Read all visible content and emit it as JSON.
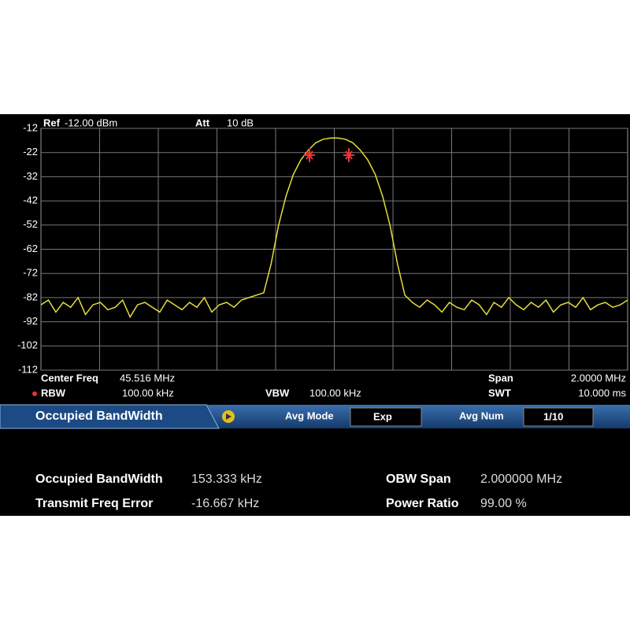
{
  "header": {
    "ref_label": "Ref",
    "ref_value": "-12.00 dBm",
    "att_label": "Att",
    "att_value": "10 dB"
  },
  "chart_data": {
    "type": "line",
    "ylim": [
      -112,
      -12
    ],
    "yticks": [
      -12,
      -22,
      -32,
      -42,
      -52,
      -62,
      -72,
      -82,
      -92,
      -102,
      -112
    ],
    "grid": true,
    "series": [
      {
        "color": "#e6dc3c",
        "values": [
          -85,
          -83,
          -88,
          -84,
          -86,
          -82,
          -89,
          -85,
          -84,
          -87,
          -86,
          -83,
          -90,
          -85,
          -84,
          -86,
          -88,
          -83,
          -85,
          -87,
          -84,
          -86,
          -82,
          -88,
          -85,
          -84,
          -86,
          -83,
          -82,
          -81,
          -80,
          -68,
          -52,
          -40,
          -31,
          -25,
          -21,
          -18,
          -16.5,
          -16,
          -16,
          -16.5,
          -18,
          -21,
          -25,
          -31,
          -40,
          -52,
          -68,
          -81,
          -84,
          -86,
          -83,
          -85,
          -88,
          -84,
          -86,
          -87,
          -83,
          -85,
          -89,
          -84,
          -86,
          -82,
          -85,
          -87,
          -84,
          -86,
          -83,
          -88,
          -85,
          -84,
          -86,
          -82,
          -87,
          -85,
          -84,
          -86,
          -85,
          -83
        ]
      }
    ]
  },
  "footer": {
    "center_freq_label": "Center Freq",
    "center_freq": "45.516 MHz",
    "span_label": "Span",
    "span": "2.0000 MHz",
    "rbw_label": "RBW",
    "rbw": "100.00 kHz",
    "vbw_label": "VBW",
    "vbw": "100.00 kHz",
    "swt_label": "SWT",
    "swt": "10.000 ms"
  },
  "menu": {
    "title": "Occupied BandWidth",
    "avg_mode_label": "Avg Mode",
    "avg_mode": "Exp",
    "avg_num_label": "Avg Num",
    "avg_num": "1/10"
  },
  "results": {
    "rows": [
      [
        "Occupied BandWidth",
        "153.333 kHz",
        "OBW Span",
        "2.000000 MHz"
      ],
      [
        "Transmit Freq Error",
        "-16.667 kHz",
        "Power Ratio",
        "99.00 %"
      ]
    ]
  }
}
